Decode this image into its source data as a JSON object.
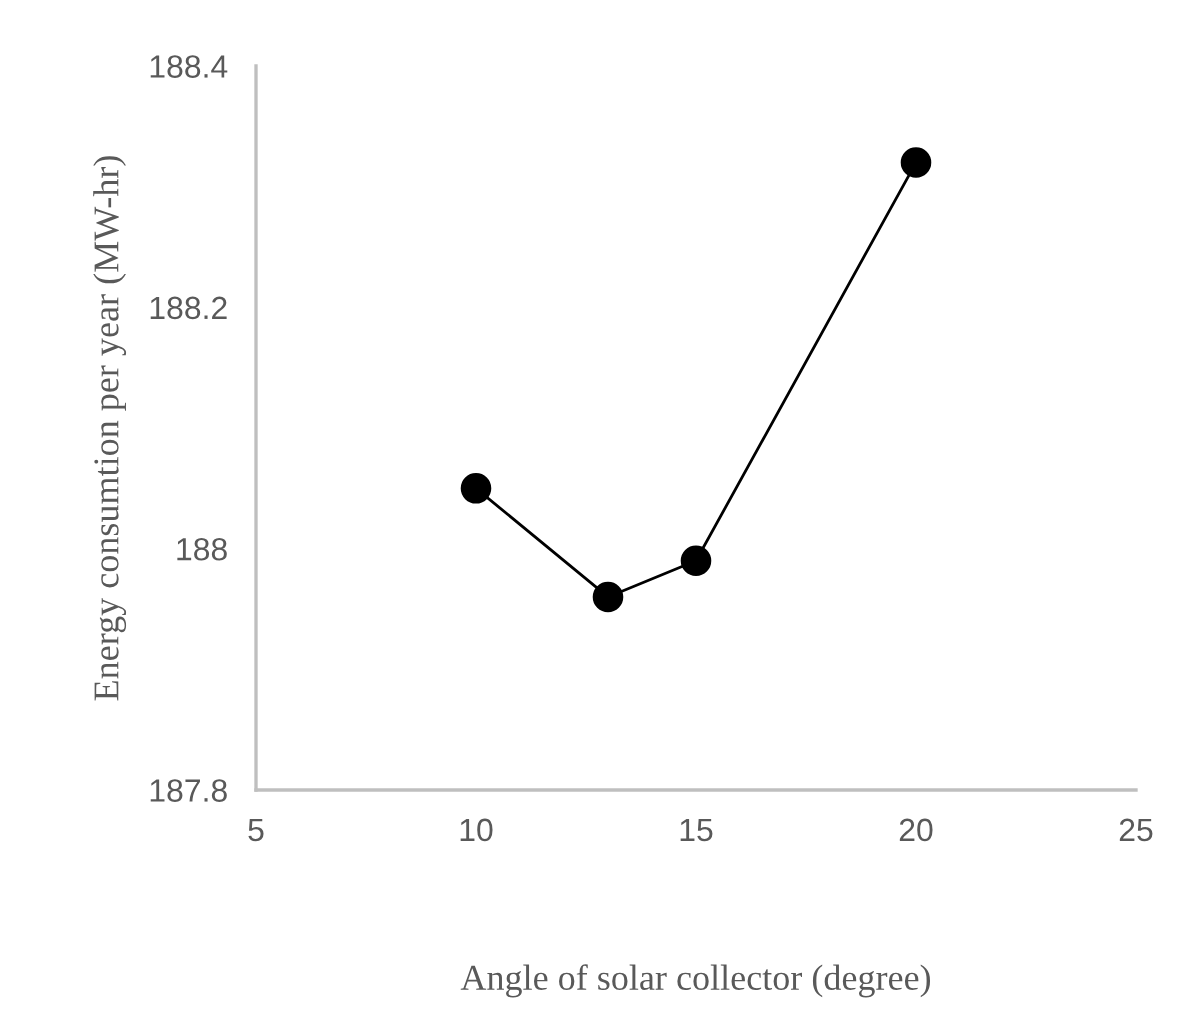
{
  "chart_data": {
    "type": "line",
    "xlabel": "Angle of solar collector (degree)",
    "ylabel": "Energy consumtion per year (MW-hr)",
    "x": [
      10,
      13,
      15,
      20
    ],
    "series": [
      {
        "color": "#000000",
        "values": [
          188.05,
          187.96,
          187.99,
          188.32
        ]
      }
    ],
    "xlim": [
      5,
      25
    ],
    "xticks": [
      5,
      10,
      15,
      20,
      25
    ],
    "ylim": [
      187.8,
      188.4
    ],
    "yticks": [
      187.8,
      {
        "value": 188.0,
        "label": "188"
      },
      188.2,
      188.4
    ],
    "grid": false,
    "marker": "circle",
    "line_style": "solid"
  }
}
